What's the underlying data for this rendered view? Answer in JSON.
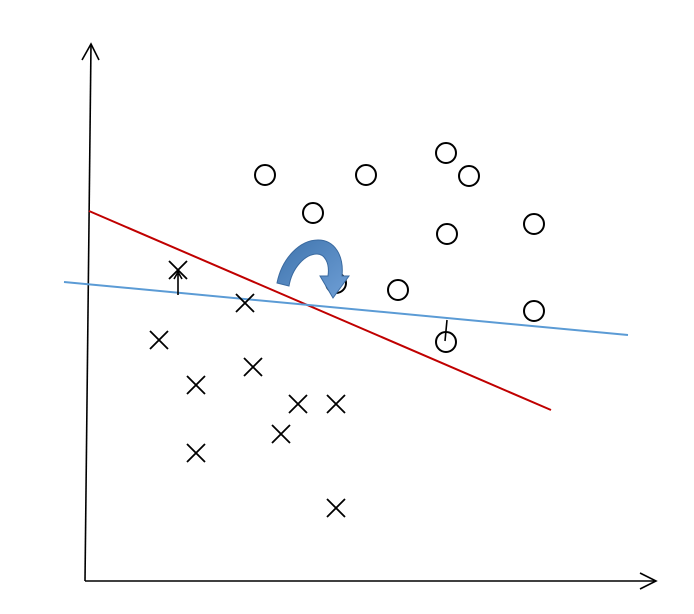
{
  "diagram": {
    "colors": {
      "axis": "#000000",
      "marker": "#000000",
      "old_boundary": "#c00000",
      "new_boundary": "#5b9bd5",
      "rotation_arrow": "#4a7fb8"
    },
    "classes": {
      "positive_marker": "circle",
      "negative_marker": "cross"
    },
    "icons": {
      "rotation": "curved-arrow-icon"
    }
  }
}
